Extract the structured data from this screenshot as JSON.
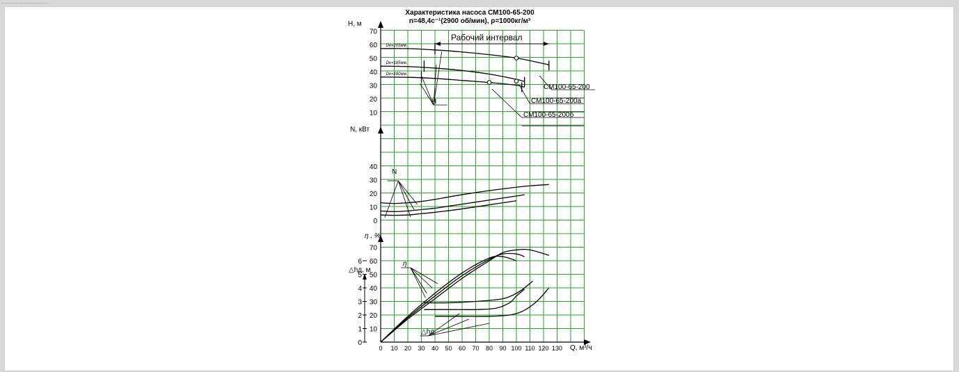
{
  "window": {
    "tab_label": ""
  },
  "chart_data": {
    "type": "line",
    "title": "Характеристика насоса СМ100-65-200",
    "subtitle": "n=48,4с⁻¹(2900 об/мин), ρ=1000кг/м³",
    "xlabel": "Q, м³/ч",
    "x_ticks": [
      "0",
      "10",
      "20",
      "30",
      "40",
      "50",
      "60",
      "70",
      "80",
      "90",
      "100",
      "110",
      "120",
      "130"
    ],
    "xlim": [
      0,
      150
    ],
    "grid": true,
    "panels": {
      "head": {
        "ylabel": "Н, м",
        "ylim": [
          0,
          70
        ],
        "y_ticks": [
          "10",
          "20",
          "30",
          "40",
          "50",
          "60",
          "70"
        ],
        "series": [
          {
            "name": "Dк=205мм.",
            "x": [
              0,
              20,
              40,
              60,
              80,
              100,
              115,
              124
            ],
            "y": [
              57,
              57,
              56,
              54.5,
              52.5,
              50,
              47,
              45
            ]
          },
          {
            "name": "Dк=185мм.",
            "x": [
              0,
              20,
              40,
              60,
              80,
              100,
              106
            ],
            "y": [
              44,
              43.7,
              42.6,
              40.8,
              38.2,
              34.3,
              32.7
            ]
          },
          {
            "name": "Dк=180мм.",
            "x": [
              0,
              20,
              40,
              60,
              80,
              100,
              106
            ],
            "y": [
              36,
              35.8,
              35,
              33.5,
              32,
              30,
              28.5
            ]
          }
        ],
        "labels": [
          "СМ100-65-200",
          "СМ100-65-200а",
          "СМ100-65-200б"
        ],
        "range_label": "Рабочий интервал",
        "range": [
          40,
          124
        ],
        "marker_label": "H",
        "circle_markers": [
          {
            "x": 100,
            "y": 50
          },
          {
            "x": 100,
            "y": 33
          },
          {
            "x": 80,
            "y": 32
          }
        ]
      },
      "power": {
        "ylabel": "N, кВт",
        "ylim": [
          0,
          40
        ],
        "y_ticks": [
          "0",
          "10",
          "20",
          "30",
          "40"
        ],
        "series": [
          {
            "x": [
              0,
              10,
              20,
              30,
              40,
              60,
              80,
              100,
              110,
              124
            ],
            "y": [
              13,
              12.5,
              13,
              14,
              15.5,
              19,
              22,
              24.5,
              25.5,
              26.5
            ]
          },
          {
            "x": [
              0,
              10,
              20,
              30,
              40,
              60,
              80,
              100,
              106
            ],
            "y": [
              7,
              6.5,
              7,
              8,
              9,
              12,
              15,
              18,
              19
            ]
          },
          {
            "x": [
              0,
              10,
              20,
              30,
              40,
              60,
              80,
              100
            ],
            "y": [
              4,
              3.8,
              4,
              5,
              6,
              8.5,
              11.5,
              14.5
            ]
          }
        ],
        "marker_label": "N"
      },
      "efficiency": {
        "ylabel": "η , %",
        "ylim": [
          0,
          70
        ],
        "y_ticks": [
          "10",
          "20",
          "30",
          "40",
          "50",
          "60",
          "70"
        ],
        "series": [
          {
            "x": [
              0,
              20,
              40,
              60,
              80,
              90,
              100,
              110,
              124
            ],
            "y": [
              0,
              17,
              32,
              47,
              60,
              66,
              68,
              68,
              64
            ]
          },
          {
            "x": [
              0,
              20,
              40,
              60,
              80,
              90,
              100,
              106
            ],
            "y": [
              0,
              18,
              34,
              49,
              61,
              65,
              65,
              63
            ]
          },
          {
            "x": [
              0,
              20,
              40,
              60,
              80,
              90,
              100
            ],
            "y": [
              0,
              19,
              36,
              51,
              62,
              63,
              60
            ]
          }
        ],
        "marker_label": "η"
      },
      "npsh": {
        "ylabel": "△hд, м",
        "ylim": [
          0,
          7
        ],
        "y_ticks": [
          "0",
          "1",
          "2",
          "3",
          "4",
          "5",
          "6"
        ],
        "series": [
          {
            "x": [
              32,
              50,
              70,
              85,
              95,
              100,
              106
            ],
            "y": [
              2.4,
              2.4,
              2.4,
              2.5,
              2.9,
              3.4,
              3.9
            ]
          },
          {
            "x": [
              32,
              50,
              70,
              90,
              100,
              106,
              112
            ],
            "y": [
              2.9,
              2.9,
              3,
              3.2,
              3.6,
              4,
              4.5
            ]
          },
          {
            "x": [
              40,
              60,
              80,
              95,
              105,
              115,
              124
            ],
            "y": [
              1.9,
              1.9,
              1.9,
              2,
              2.3,
              3,
              4
            ]
          }
        ],
        "marker_label": "△hд"
      }
    }
  }
}
